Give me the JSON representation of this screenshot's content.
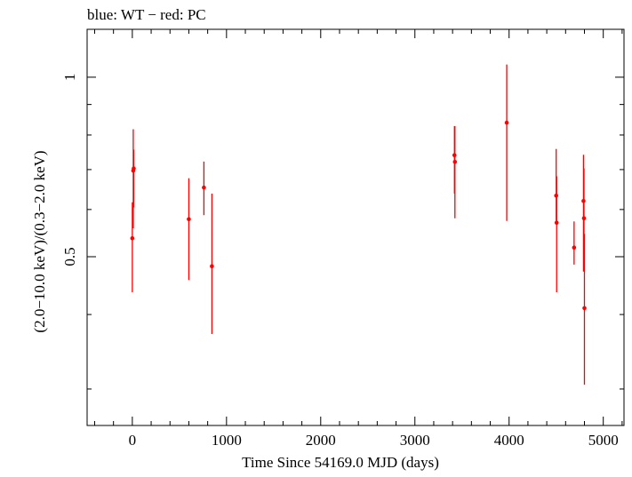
{
  "chart_data": {
    "type": "scatter",
    "title": "blue: WT − red: PC",
    "xlabel": "Time Since 54169.0 MJD (days)",
    "ylabel": "(2.0−10.0 keV)/(0.3−2.0 keV)",
    "xlim": [
      -480,
      5220
    ],
    "ylim": [
      0.2606,
      1.2031
    ],
    "y_scale": "log",
    "x_ticks": [
      0,
      1000,
      2000,
      3000,
      4000,
      5000
    ],
    "x_tick_labels": [
      "0",
      "1000",
      "2000",
      "3000",
      "4000",
      "5000"
    ],
    "y_major_ticks": [
      1,
      0.5
    ],
    "y_tick_labels": [
      "1",
      "0.5"
    ],
    "y_minor_ticks": [
      0.3,
      0.4,
      0.6,
      0.7,
      0.8,
      0.9
    ],
    "grid": false,
    "series": [
      {
        "name": "PC",
        "color": "#ff0000",
        "points": [
          {
            "x": 0,
            "y": 0.537,
            "ylo": 0.436,
            "yhi": 0.617
          },
          {
            "x": 10,
            "y": 0.697,
            "ylo": 0.558,
            "yhi": 0.818
          },
          {
            "x": 15,
            "y": 0.703,
            "ylo": 0.605,
            "yhi": 0.756
          },
          {
            "x": 600,
            "y": 0.578,
            "ylo": 0.457,
            "yhi": 0.677
          },
          {
            "x": 760,
            "y": 0.653,
            "ylo": 0.587,
            "yhi": 0.722
          },
          {
            "x": 845,
            "y": 0.482,
            "ylo": 0.371,
            "yhi": 0.638
          },
          {
            "x": 3420,
            "y": 0.74,
            "ylo": 0.638,
            "yhi": 0.828
          },
          {
            "x": 3425,
            "y": 0.721,
            "ylo": 0.58,
            "yhi": 0.828
          },
          {
            "x": 3975,
            "y": 0.839,
            "ylo": 0.574,
            "yhi": 1.05
          },
          {
            "x": 4500,
            "y": 0.633,
            "ylo": 0.567,
            "yhi": 0.758
          },
          {
            "x": 4505,
            "y": 0.57,
            "ylo": 0.436,
            "yhi": 0.682
          },
          {
            "x": 4690,
            "y": 0.518,
            "ylo": 0.485,
            "yhi": 0.573
          },
          {
            "x": 4790,
            "y": 0.62,
            "ylo": 0.472,
            "yhi": 0.741
          },
          {
            "x": 4795,
            "y": 0.58,
            "ylo": 0.485,
            "yhi": 0.703
          },
          {
            "x": 4800,
            "y": 0.41,
            "ylo": 0.305,
            "yhi": 0.546
          }
        ]
      }
    ]
  }
}
